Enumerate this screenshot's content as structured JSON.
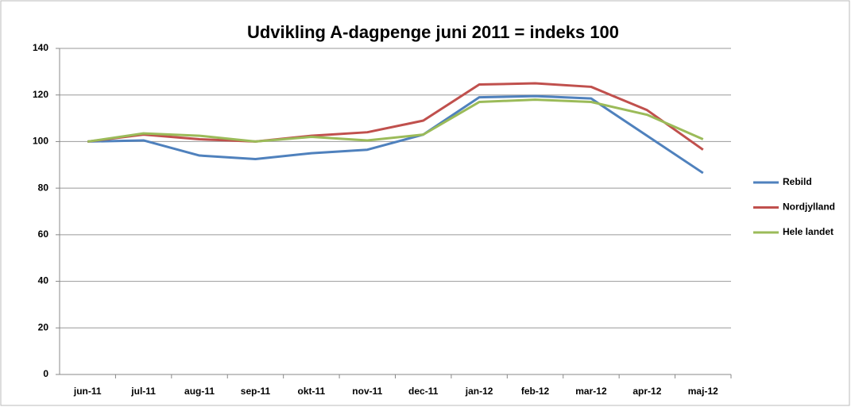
{
  "chart_data": {
    "type": "line",
    "title": "Udvikling A-dagpenge juni 2011 = indeks 100",
    "categories": [
      "jun-11",
      "jul-11",
      "aug-11",
      "sep-11",
      "okt-11",
      "nov-11",
      "dec-11",
      "jan-12",
      "feb-12",
      "mar-12",
      "apr-12",
      "maj-12"
    ],
    "series": [
      {
        "name": "Rebild",
        "color": "#4f81bd",
        "values": [
          100,
          100.5,
          94,
          92.5,
          95,
          96.5,
          103,
          119,
          119.5,
          118.5,
          102.5,
          86.5
        ]
      },
      {
        "name": "Nordjylland",
        "color": "#c0504d",
        "values": [
          100,
          103,
          101,
          100,
          102.5,
          104,
          109,
          124.5,
          125,
          123.5,
          113.5,
          96.5
        ]
      },
      {
        "name": "Hele landet",
        "color": "#9bbb59",
        "values": [
          100,
          103.5,
          102.5,
          100,
          102,
          100.5,
          103,
          117,
          118,
          117,
          111.5,
          101
        ]
      }
    ],
    "ylim": [
      0,
      140
    ],
    "yticks": [
      0,
      20,
      40,
      60,
      80,
      100,
      120,
      140
    ],
    "grid": true,
    "legend": "right"
  }
}
